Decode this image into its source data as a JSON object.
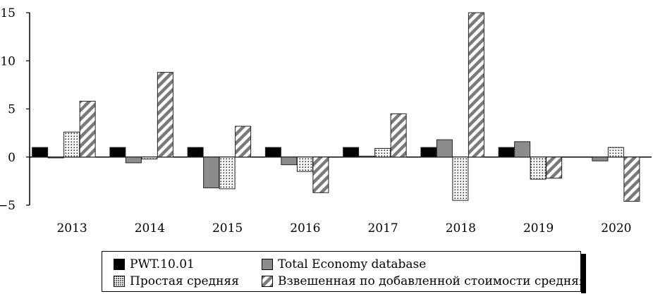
{
  "chart_data": {
    "type": "bar",
    "categories": [
      "2013",
      "2014",
      "2015",
      "2016",
      "2017",
      "2018",
      "2019",
      "2020"
    ],
    "series": [
      {
        "name": "PWT.10.01",
        "values": [
          1,
          1,
          1,
          1,
          1,
          1,
          1,
          null
        ],
        "color": "#000000",
        "pattern": "solid-black"
      },
      {
        "name": "Total Economy database",
        "values": [
          0,
          -0.6,
          -3.2,
          -0.8,
          0.1,
          1.8,
          1.6,
          -0.4
        ],
        "color": "#8c8c8c",
        "pattern": "solid-gray"
      },
      {
        "name": "Простая средняя",
        "values": [
          2.6,
          -0.2,
          -3.3,
          -1.5,
          0.9,
          -4.5,
          -2.3,
          1.0
        ],
        "color": "#ffffff",
        "pattern": "dots"
      },
      {
        "name": "Взвешенная по добавленной стоимости средняя",
        "values": [
          5.8,
          8.8,
          3.2,
          -3.7,
          4.5,
          15,
          -2.2,
          -4.6
        ],
        "color": "#888888",
        "pattern": "diagonal-hatch"
      }
    ],
    "yticks": [
      "15",
      "10",
      "5",
      "0",
      "−5"
    ],
    "ylim": [
      -5,
      15
    ],
    "grid": false,
    "legend_position": "bottom"
  }
}
